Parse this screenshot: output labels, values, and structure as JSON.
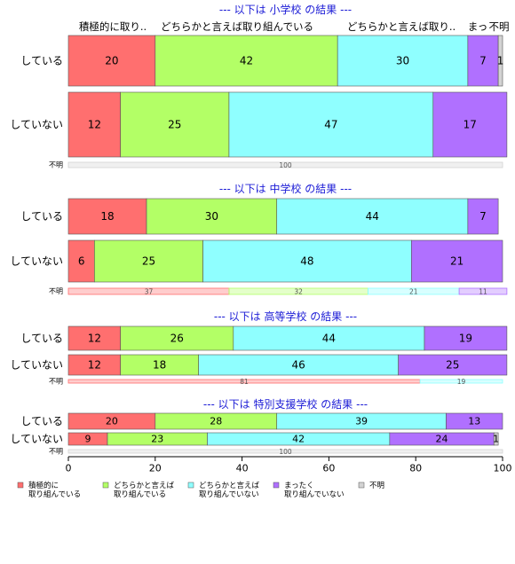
{
  "chart_data": {
    "type": "bar",
    "orientation": "horizontal-stacked-percent",
    "xlim": [
      0,
      100
    ],
    "x_ticks": [
      "0",
      "20",
      "40",
      "60",
      "80",
      "100"
    ],
    "grid": false,
    "legend_position": "bottom",
    "top_category_labels": [
      "積極的に取り..",
      "どちらかと言えば取り組んでいる",
      "どちらかと言えば取り..",
      "まっ",
      "不明"
    ],
    "legend": [
      {
        "label_lines": [
          "積極的に",
          "取り組んでいる"
        ],
        "color": "#ff6f6f"
      },
      {
        "label_lines": [
          "どちらかと言えば",
          "取り組んでいる"
        ],
        "color": "#b3ff66"
      },
      {
        "label_lines": [
          "どちらかと言えば",
          "取り組んでいない"
        ],
        "color": "#8fffff"
      },
      {
        "label_lines": [
          "まったく",
          "取り組んでいない"
        ],
        "color": "#b070ff"
      },
      {
        "label_lines": [
          "不明"
        ],
        "color": "#d3d3d3"
      }
    ],
    "panels": [
      {
        "title": "--- 以下は 小学校 の結果 ---",
        "rows": [
          {
            "label": "している",
            "values": [
              20,
              42,
              30,
              7,
              1
            ],
            "labels": [
              "20",
              "42",
              "30",
              "7",
              "1"
            ]
          },
          {
            "label": "していない",
            "values": [
              12,
              25,
              47,
              17,
              0
            ],
            "labels": [
              "12",
              "25",
              "47",
              "17",
              ""
            ]
          }
        ],
        "unknown": {
          "label": "不明",
          "values": [
            0,
            0,
            0,
            0,
            100
          ],
          "labels": [
            "",
            "",
            "",
            "",
            "100"
          ]
        }
      },
      {
        "title": "--- 以下は 中学校 の結果 ---",
        "rows": [
          {
            "label": "している",
            "values": [
              18,
              30,
              44,
              7,
              0
            ],
            "labels": [
              "18",
              "30",
              "44",
              "7",
              ""
            ]
          },
          {
            "label": "していない",
            "values": [
              6,
              25,
              48,
              21,
              0
            ],
            "labels": [
              "6",
              "25",
              "48",
              "21",
              ""
            ]
          }
        ],
        "unknown": {
          "label": "不明",
          "values": [
            37,
            32,
            21,
            11,
            0
          ],
          "labels": [
            "37",
            "32",
            "21",
            "11",
            ""
          ]
        }
      },
      {
        "title": "--- 以下は 高等学校 の結果 ---",
        "rows": [
          {
            "label": "している",
            "values": [
              12,
              26,
              44,
              19,
              0
            ],
            "labels": [
              "12",
              "26",
              "44",
              "19",
              ""
            ]
          },
          {
            "label": "していない",
            "values": [
              12,
              18,
              46,
              25,
              0
            ],
            "labels": [
              "12",
              "18",
              "46",
              "25",
              ""
            ]
          }
        ],
        "unknown": {
          "label": "不明",
          "values": [
            81,
            0,
            19,
            0,
            0
          ],
          "labels": [
            "81",
            "",
            "19",
            "",
            ""
          ]
        }
      },
      {
        "title": "--- 以下は 特別支援学校 の結果 ---",
        "rows": [
          {
            "label": "している",
            "values": [
              20,
              28,
              39,
              13,
              0
            ],
            "labels": [
              "20",
              "28",
              "39",
              "13",
              ""
            ]
          },
          {
            "label": "していない",
            "values": [
              9,
              23,
              42,
              24,
              1
            ],
            "labels": [
              "9",
              "23",
              "42",
              "24",
              "1"
            ]
          }
        ],
        "unknown": {
          "label": "不明",
          "values": [
            0,
            0,
            0,
            0,
            100
          ],
          "labels": [
            "",
            "",
            "",
            "",
            "100"
          ]
        }
      }
    ]
  }
}
